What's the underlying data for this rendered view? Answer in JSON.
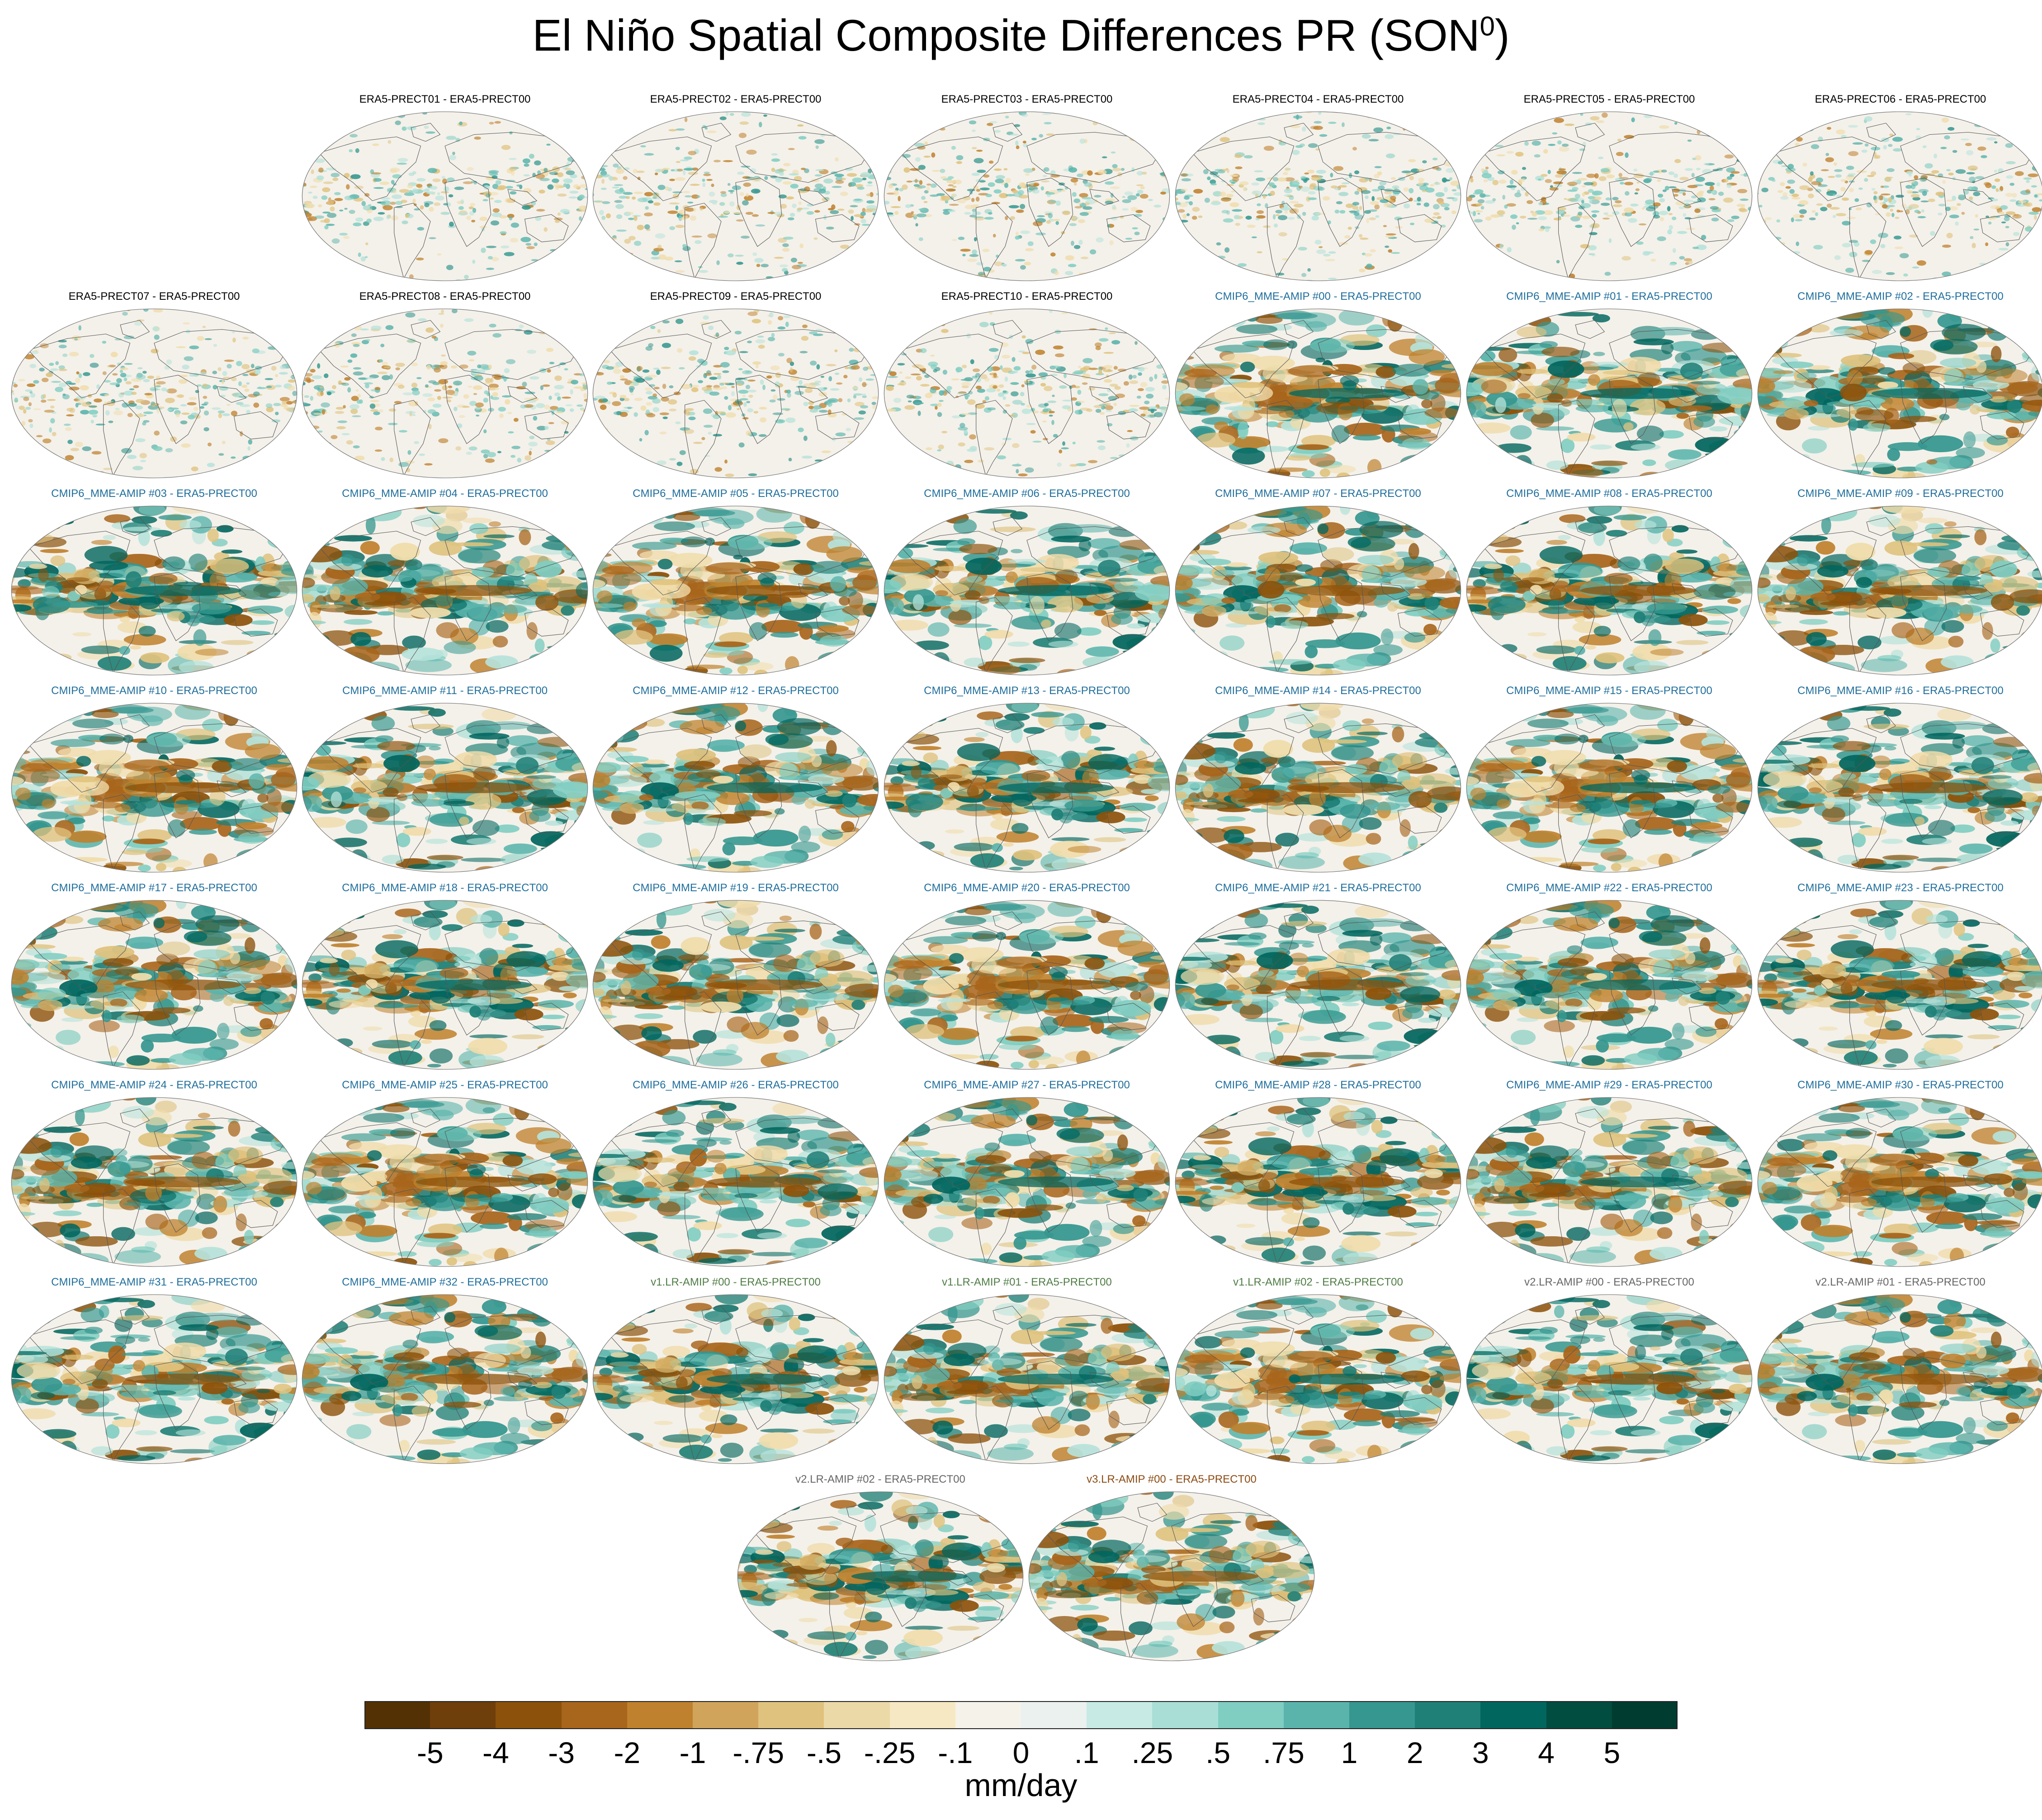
{
  "figure": {
    "title": "El Niño Spatial Composite Differences PR (SON",
    "title_superscript": "0",
    "title_suffix": ")"
  },
  "panels": [
    {
      "label": "ERA5-PRECT01 - ERA5-PRECT00",
      "group": "era5"
    },
    {
      "label": "ERA5-PRECT02 - ERA5-PRECT00",
      "group": "era5"
    },
    {
      "label": "ERA5-PRECT03 - ERA5-PRECT00",
      "group": "era5"
    },
    {
      "label": "ERA5-PRECT04 - ERA5-PRECT00",
      "group": "era5"
    },
    {
      "label": "ERA5-PRECT05 - ERA5-PRECT00",
      "group": "era5"
    },
    {
      "label": "ERA5-PRECT06 - ERA5-PRECT00",
      "group": "era5"
    },
    {
      "label": "ERA5-PRECT07 - ERA5-PRECT00",
      "group": "era5"
    },
    {
      "label": "ERA5-PRECT08 - ERA5-PRECT00",
      "group": "era5"
    },
    {
      "label": "ERA5-PRECT09 - ERA5-PRECT00",
      "group": "era5"
    },
    {
      "label": "ERA5-PRECT10 - ERA5-PRECT00",
      "group": "era5"
    },
    {
      "label": "CMIP6_MME-AMIP  #00 - ERA5-PRECT00",
      "group": "cmip6"
    },
    {
      "label": "CMIP6_MME-AMIP  #01 - ERA5-PRECT00",
      "group": "cmip6"
    },
    {
      "label": "CMIP6_MME-AMIP  #02 - ERA5-PRECT00",
      "group": "cmip6"
    },
    {
      "label": "CMIP6_MME-AMIP  #03 - ERA5-PRECT00",
      "group": "cmip6"
    },
    {
      "label": "CMIP6_MME-AMIP  #04 - ERA5-PRECT00",
      "group": "cmip6"
    },
    {
      "label": "CMIP6_MME-AMIP  #05 - ERA5-PRECT00",
      "group": "cmip6"
    },
    {
      "label": "CMIP6_MME-AMIP  #06 - ERA5-PRECT00",
      "group": "cmip6"
    },
    {
      "label": "CMIP6_MME-AMIP  #07 - ERA5-PRECT00",
      "group": "cmip6"
    },
    {
      "label": "CMIP6_MME-AMIP  #08 - ERA5-PRECT00",
      "group": "cmip6"
    },
    {
      "label": "CMIP6_MME-AMIP  #09 - ERA5-PRECT00",
      "group": "cmip6"
    },
    {
      "label": "CMIP6_MME-AMIP  #10 - ERA5-PRECT00",
      "group": "cmip6"
    },
    {
      "label": "CMIP6_MME-AMIP  #11 - ERA5-PRECT00",
      "group": "cmip6"
    },
    {
      "label": "CMIP6_MME-AMIP  #12 - ERA5-PRECT00",
      "group": "cmip6"
    },
    {
      "label": "CMIP6_MME-AMIP  #13 - ERA5-PRECT00",
      "group": "cmip6"
    },
    {
      "label": "CMIP6_MME-AMIP  #14 - ERA5-PRECT00",
      "group": "cmip6"
    },
    {
      "label": "CMIP6_MME-AMIP  #15 - ERA5-PRECT00",
      "group": "cmip6"
    },
    {
      "label": "CMIP6_MME-AMIP  #16 - ERA5-PRECT00",
      "group": "cmip6"
    },
    {
      "label": "CMIP6_MME-AMIP  #17 - ERA5-PRECT00",
      "group": "cmip6"
    },
    {
      "label": "CMIP6_MME-AMIP  #18 - ERA5-PRECT00",
      "group": "cmip6"
    },
    {
      "label": "CMIP6_MME-AMIP  #19 - ERA5-PRECT00",
      "group": "cmip6"
    },
    {
      "label": "CMIP6_MME-AMIP  #20 - ERA5-PRECT00",
      "group": "cmip6"
    },
    {
      "label": "CMIP6_MME-AMIP  #21 - ERA5-PRECT00",
      "group": "cmip6"
    },
    {
      "label": "CMIP6_MME-AMIP  #22 - ERA5-PRECT00",
      "group": "cmip6"
    },
    {
      "label": "CMIP6_MME-AMIP  #23 - ERA5-PRECT00",
      "group": "cmip6"
    },
    {
      "label": "CMIP6_MME-AMIP  #24 - ERA5-PRECT00",
      "group": "cmip6"
    },
    {
      "label": "CMIP6_MME-AMIP  #25 - ERA5-PRECT00",
      "group": "cmip6"
    },
    {
      "label": "CMIP6_MME-AMIP  #26 - ERA5-PRECT00",
      "group": "cmip6"
    },
    {
      "label": "CMIP6_MME-AMIP  #27 - ERA5-PRECT00",
      "group": "cmip6"
    },
    {
      "label": "CMIP6_MME-AMIP  #28 - ERA5-PRECT00",
      "group": "cmip6"
    },
    {
      "label": "CMIP6_MME-AMIP  #29 - ERA5-PRECT00",
      "group": "cmip6"
    },
    {
      "label": "CMIP6_MME-AMIP  #30 - ERA5-PRECT00",
      "group": "cmip6"
    },
    {
      "label": "CMIP6_MME-AMIP  #31 - ERA5-PRECT00",
      "group": "cmip6"
    },
    {
      "label": "CMIP6_MME-AMIP  #32 - ERA5-PRECT00",
      "group": "cmip6"
    },
    {
      "label": "v1.LR-AMIP  #00 - ERA5-PRECT00",
      "group": "v1"
    },
    {
      "label": "v1.LR-AMIP  #01 - ERA5-PRECT00",
      "group": "v1"
    },
    {
      "label": "v1.LR-AMIP  #02 - ERA5-PRECT00",
      "group": "v1"
    },
    {
      "label": "v2.LR-AMIP  #00 - ERA5-PRECT00",
      "group": "v2"
    },
    {
      "label": "v2.LR-AMIP  #01 - ERA5-PRECT00",
      "group": "v2"
    },
    {
      "label": "v2.LR-AMIP  #02 - ERA5-PRECT00",
      "group": "v2"
    },
    {
      "label": "v3.LR-AMIP  #00 - ERA5-PRECT00",
      "group": "v3"
    }
  ],
  "group_colors": {
    "era5": "#000000",
    "cmip6": "#1f6e9c",
    "v1": "#4f7d45",
    "v2": "#666666",
    "v3": "#8b4a12"
  },
  "colorbar": {
    "units": "mm/day",
    "tick_labels": [
      "-5",
      "-4",
      "-3",
      "-2",
      "-1",
      "-.75",
      "-.5",
      "-.25",
      "-.1",
      "0",
      ".1",
      ".25",
      ".5",
      ".75",
      "1",
      "2",
      "3",
      "4",
      "5"
    ],
    "colors": [
      "#543005",
      "#6e3f0a",
      "#8c510a",
      "#a8651c",
      "#bf812d",
      "#d1a45c",
      "#dfc27d",
      "#ecd9a8",
      "#f6e8c3",
      "#f5f2ea",
      "#eaf1ee",
      "#c7eae5",
      "#a9ded6",
      "#80cdc1",
      "#5ab4ac",
      "#35978f",
      "#1f8077",
      "#01665e",
      "#014d40",
      "#003c30"
    ]
  }
}
